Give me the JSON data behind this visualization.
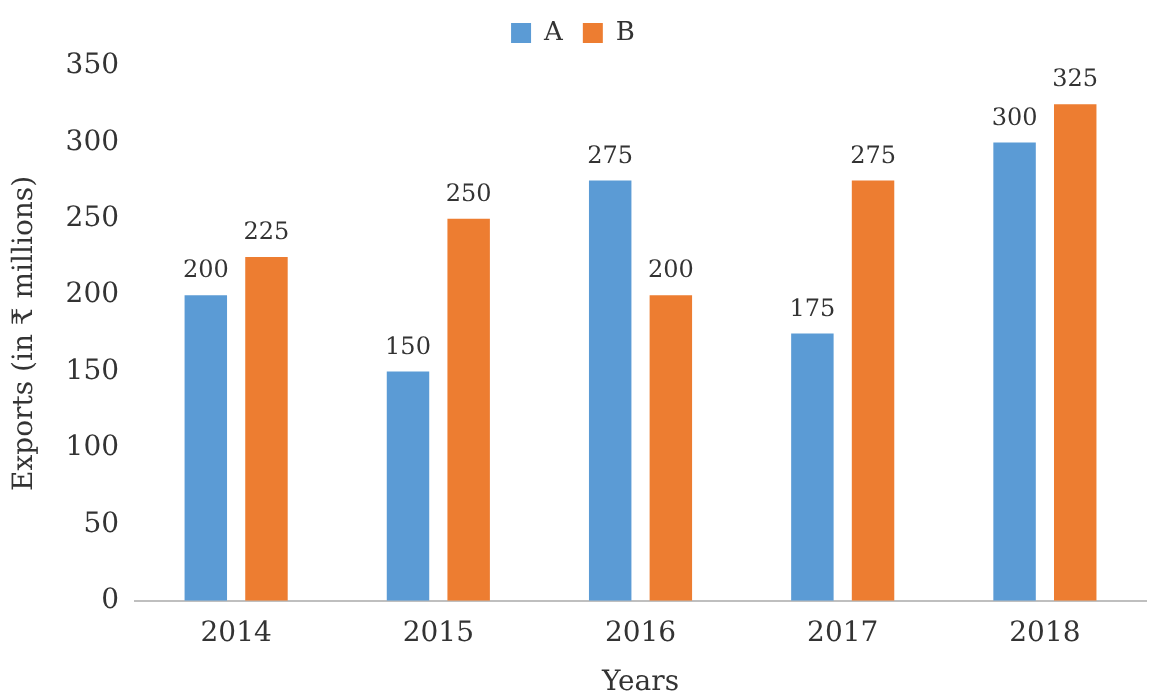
{
  "chart_data": {
    "type": "bar",
    "xlabel": "Years",
    "ylabel": "Exports (in ₹ millions)",
    "categories": [
      "2014",
      "2015",
      "2016",
      "2017",
      "2018"
    ],
    "series": [
      {
        "name": "A",
        "color": "#5b9bd5",
        "values": [
          200,
          150,
          275,
          175,
          300
        ]
      },
      {
        "name": "B",
        "color": "#ed7d31",
        "values": [
          225,
          250,
          200,
          275,
          325
        ]
      }
    ],
    "ylim": [
      0,
      350
    ],
    "yticks": [
      0,
      50,
      100,
      150,
      200,
      250,
      300,
      350
    ],
    "grid": false,
    "legend": "top",
    "data_labels": true
  }
}
